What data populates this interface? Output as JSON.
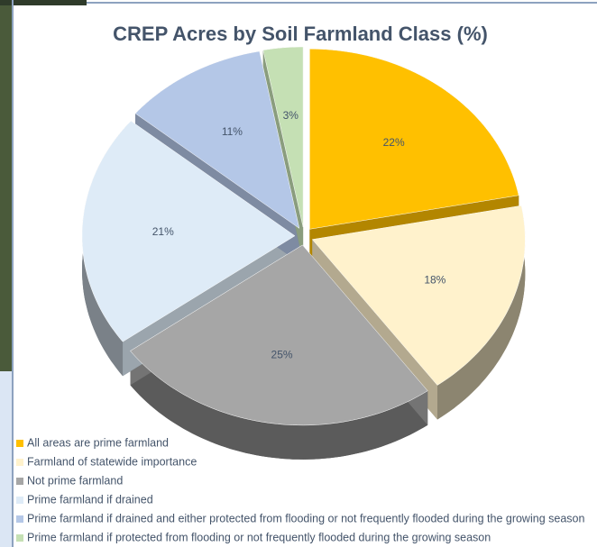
{
  "chart_data": {
    "type": "pie",
    "title": "CREP Acres by Soil Farmland Class (%)",
    "categories": [
      "All areas are prime farmland",
      "Farmland of statewide importance",
      "Not prime farmland",
      "Prime farmland if drained",
      "Prime farmland if drained and either protected from flooding or not frequently flooded during the growing season",
      "Prime farmland if protected from flooding or not frequently flooded during the growing season"
    ],
    "values": [
      22,
      18,
      25,
      21,
      11,
      3
    ],
    "value_labels": [
      "22%",
      "18%",
      "25%",
      "21%",
      "11%",
      "3%"
    ],
    "colors": [
      "#ffc000",
      "#fff2cc",
      "#a6a6a6",
      "#deebf7",
      "#b4c7e7",
      "#c5e0b4"
    ],
    "legend": "bottom-left"
  }
}
